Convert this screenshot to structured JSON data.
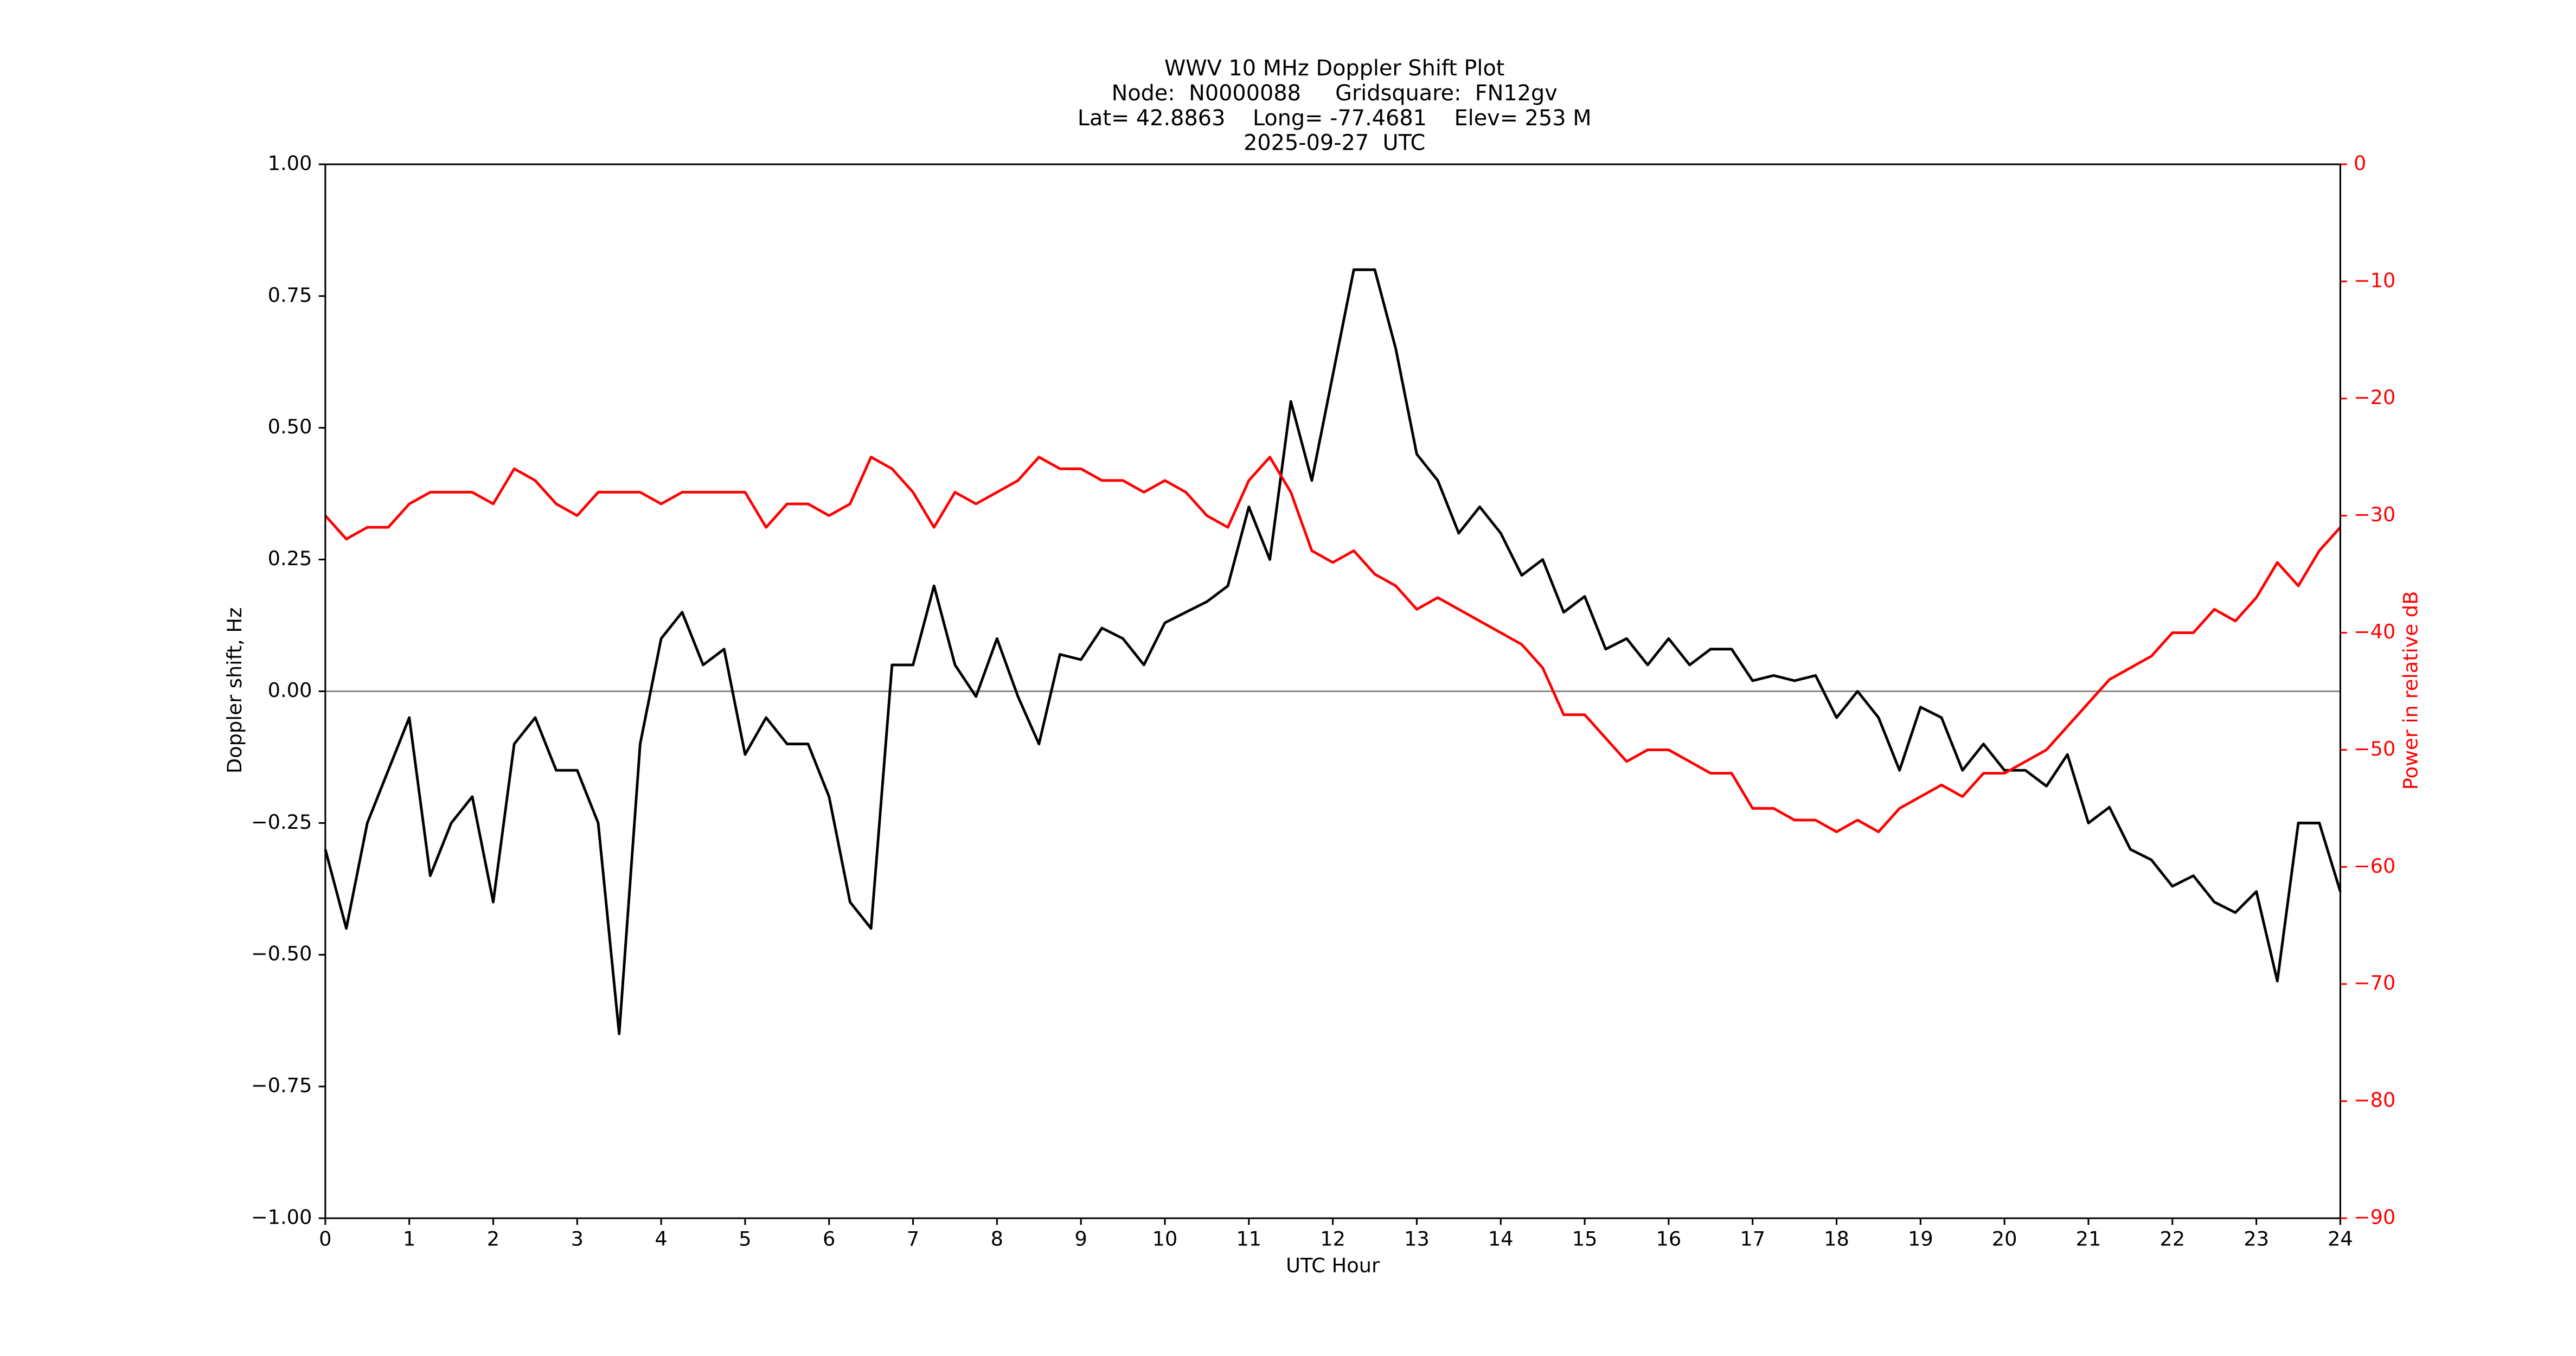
{
  "chart_data": {
    "type": "line",
    "title": [
      "WWV 10 MHz Doppler Shift Plot",
      "Node:  N0000088     Gridsquare:  FN12gv",
      "Lat= 42.8863    Long= -77.4681    Elev= 253 M",
      "2025-09-27  UTC"
    ],
    "xlabel": "UTC Hour",
    "ylabel": "Doppler shift, Hz",
    "y2label": "Power in relative dB",
    "x": [
      0,
      0.25,
      0.5,
      0.75,
      1,
      1.25,
      1.5,
      1.75,
      2,
      2.25,
      2.5,
      2.75,
      3,
      3.25,
      3.5,
      3.75,
      4,
      4.25,
      4.5,
      4.75,
      5,
      5.25,
      5.5,
      5.75,
      6,
      6.25,
      6.5,
      6.75,
      7,
      7.25,
      7.5,
      7.75,
      8,
      8.25,
      8.5,
      8.75,
      9,
      9.25,
      9.5,
      9.75,
      10,
      10.25,
      10.5,
      10.75,
      11,
      11.25,
      11.5,
      11.75,
      12,
      12.25,
      12.5,
      12.75,
      13,
      13.25,
      13.5,
      13.75,
      14,
      14.25,
      14.5,
      14.75,
      15,
      15.25,
      15.5,
      15.75,
      16,
      16.25,
      16.5,
      16.75,
      17,
      17.25,
      17.5,
      17.75,
      18,
      18.25,
      18.5,
      18.75,
      19,
      19.25,
      19.5,
      19.75,
      20,
      20.25,
      20.5,
      20.75,
      21,
      21.25,
      21.5,
      21.75,
      22,
      22.25,
      22.5,
      22.75,
      23,
      23.25,
      23.5,
      23.75,
      24
    ],
    "series": [
      {
        "name": "Doppler shift",
        "color": "#000000",
        "values": [
          -0.3,
          -0.45,
          -0.25,
          -0.15,
          -0.05,
          -0.35,
          -0.25,
          -0.2,
          -0.4,
          -0.1,
          -0.05,
          -0.15,
          -0.15,
          -0.25,
          -0.65,
          -0.1,
          0.1,
          0.15,
          0.05,
          0.08,
          -0.12,
          -0.05,
          -0.1,
          -0.1,
          -0.2,
          -0.4,
          -0.45,
          0.05,
          0.05,
          0.2,
          0.05,
          -0.01,
          0.1,
          -0.01,
          -0.1,
          0.07,
          0.06,
          0.12,
          0.1,
          0.05,
          0.13,
          0.15,
          0.17,
          0.2,
          0.35,
          0.25,
          0.55,
          0.4,
          0.6,
          0.8,
          0.8,
          0.65,
          0.45,
          0.4,
          0.3,
          0.35,
          0.3,
          0.22,
          0.25,
          0.15,
          0.18,
          0.08,
          0.1,
          0.05,
          0.1,
          0.05,
          0.08,
          0.08,
          0.02,
          0.03,
          0.02,
          0.03,
          -0.05,
          0.0,
          -0.05,
          -0.15,
          -0.03,
          -0.05,
          -0.15,
          -0.1,
          -0.15,
          -0.15,
          -0.18,
          -0.12,
          -0.25,
          -0.22,
          -0.3,
          -0.32,
          -0.37,
          -0.35,
          -0.4,
          -0.42,
          -0.38,
          -0.55,
          -0.25,
          -0.25,
          -0.38
        ]
      },
      {
        "name": "Power",
        "color": "#ff0000",
        "axis": "y2",
        "values": [
          -30,
          -32,
          -31,
          -31,
          -29,
          -28,
          -28,
          -28,
          -29,
          -26,
          -27,
          -29,
          -30,
          -28,
          -28,
          -28,
          -29,
          -28,
          -28,
          -28,
          -28,
          -31,
          -29,
          -29,
          -30,
          -29,
          -25,
          -26,
          -28,
          -31,
          -28,
          -29,
          -28,
          -27,
          -25,
          -26,
          -26,
          -27,
          -27,
          -28,
          -27,
          -28,
          -30,
          -31,
          -27,
          -25,
          -28,
          -33,
          -34,
          -33,
          -35,
          -36,
          -38,
          -37,
          -38,
          -39,
          -40,
          -41,
          -43,
          -47,
          -47,
          -49,
          -51,
          -50,
          -50,
          -51,
          -52,
          -52,
          -55,
          -55,
          -56,
          -56,
          -57,
          -56,
          -57,
          -55,
          -54,
          -53,
          -54,
          -52,
          -52,
          -51,
          -50,
          -48,
          -46,
          -44,
          -43,
          -42,
          -40,
          -40,
          -38,
          -39,
          -37,
          -34,
          -36,
          -33,
          -31
        ]
      }
    ],
    "xlim": [
      0,
      24
    ],
    "xticks": [
      0,
      1,
      2,
      3,
      4,
      5,
      6,
      7,
      8,
      9,
      10,
      11,
      12,
      13,
      14,
      15,
      16,
      17,
      18,
      19,
      20,
      21,
      22,
      23,
      24
    ],
    "ylim": [
      -1,
      1
    ],
    "yticks": [
      {
        "value": -1,
        "label": "−1.00"
      },
      {
        "value": -0.75,
        "label": "−0.75"
      },
      {
        "value": -0.5,
        "label": "−0.50"
      },
      {
        "value": -0.25,
        "label": "−0.25"
      },
      {
        "value": 0,
        "label": "0.00"
      },
      {
        "value": 0.25,
        "label": "0.25"
      },
      {
        "value": 0.5,
        "label": "0.50"
      },
      {
        "value": 0.75,
        "label": "0.75"
      },
      {
        "value": 1,
        "label": "1.00"
      }
    ],
    "y2lim": [
      -90,
      0
    ],
    "y2ticks": [
      {
        "value": -90,
        "label": "−90"
      },
      {
        "value": -80,
        "label": "−80"
      },
      {
        "value": -70,
        "label": "−70"
      },
      {
        "value": -60,
        "label": "−60"
      },
      {
        "value": -50,
        "label": "−50"
      },
      {
        "value": -40,
        "label": "−40"
      },
      {
        "value": -30,
        "label": "−30"
      },
      {
        "value": -20,
        "label": "−20"
      },
      {
        "value": -10,
        "label": "−10"
      },
      0
    ],
    "y2color": "#ff0000",
    "zero_line": true
  }
}
